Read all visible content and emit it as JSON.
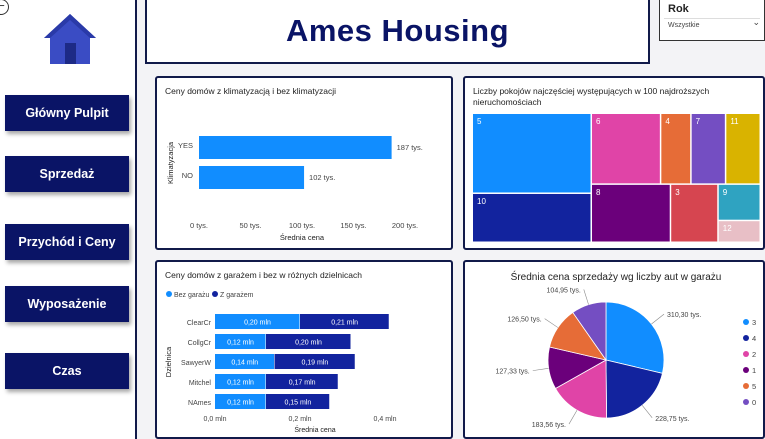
{
  "header": {
    "title": "Ames Housing"
  },
  "slicer": {
    "title": "Rok",
    "value": "Wszystkie"
  },
  "nav": [
    {
      "label": "Główny Pulpit"
    },
    {
      "label": "Sprzedaż"
    },
    {
      "label": "Przychód i Ceny"
    },
    {
      "label": "Wyposażenie"
    },
    {
      "label": "Czas"
    }
  ],
  "icons": {
    "back": "back-circle-icon",
    "logo": "house-icon",
    "dropdown": "chevron-down-icon"
  },
  "colors": {
    "navy": "#0a1466",
    "blue": "#118dff",
    "darkblue": "#12239e"
  },
  "chart_data": [
    {
      "type": "bar",
      "orientation": "horizontal",
      "title": "Ceny domów z klimatyzacją i bez klimatyzacji",
      "ylabel": "Klimatyzacja",
      "xlabel": "Średnia cena",
      "categories": [
        "YES",
        "NO"
      ],
      "values": [
        187,
        102
      ],
      "data_labels": [
        "187 tys.",
        "102 tys."
      ],
      "xticks": [
        "0 tys.",
        "50 tys.",
        "100 tys.",
        "150 tys.",
        "200 tys."
      ],
      "xlim": [
        0,
        200
      ],
      "color": "#118dff"
    },
    {
      "type": "treemap",
      "title": "Liczby pokojów najczęściej występujących w 100 najdroższych nieruchomościach",
      "categories": [
        "5",
        "6",
        "4",
        "7",
        "11",
        "8",
        "10",
        "3",
        "9",
        "12"
      ],
      "values": [
        31,
        16,
        7,
        8,
        8,
        15,
        19,
        9,
        5,
        3
      ],
      "colors": [
        "#118dff",
        "#e044a7",
        "#e66c37",
        "#744ec2",
        "#d9b300",
        "#6b007b",
        "#12239e",
        "#d64550",
        "#2fa3c1",
        "#e8bfc6"
      ]
    },
    {
      "type": "bar",
      "orientation": "horizontal",
      "stacked": true,
      "title": "Ceny domów z garażem i bez w różnych dzielnicach",
      "ylabel": "Dzielnica",
      "xlabel": "Średnia cena",
      "categories": [
        "ClearCr",
        "CollgCr",
        "SawyerW",
        "Mitchel",
        "NAmes"
      ],
      "series": [
        {
          "name": "Bez garażu",
          "values": [
            0.2,
            0.12,
            0.14,
            0.12,
            0.12
          ],
          "labels": [
            "0,20 mln",
            "0,12 mln",
            "0,14 mln",
            "0,12 mln",
            "0,12 mln"
          ],
          "color": "#118dff"
        },
        {
          "name": "Z garażem",
          "values": [
            0.21,
            0.2,
            0.19,
            0.17,
            0.15
          ],
          "labels": [
            "0,21 mln",
            "0,20 mln",
            "0,19 mln",
            "0,17 mln",
            "0,15 mln"
          ],
          "color": "#12239e"
        }
      ],
      "xticks": [
        "0,0 mln",
        "0,2 mln",
        "0,4 mln"
      ],
      "xlim": [
        0,
        0.4
      ]
    },
    {
      "type": "pie",
      "title": "Średnia cena sprzedaży wg liczby aut w garażu",
      "categories": [
        "3",
        "4",
        "2",
        "1",
        "5",
        "0"
      ],
      "values": [
        310.3,
        228.75,
        183.56,
        127.33,
        126.5,
        104.95
      ],
      "labels": [
        "310,30 tys.",
        "228,75 tys.",
        "183,56 tys.",
        "127,33 tys.",
        "126,50 tys.",
        "104,95 tys."
      ],
      "colors": [
        "#118dff",
        "#12239e",
        "#e044a7",
        "#6b007b",
        "#e66c37",
        "#744ec2"
      ],
      "legend": "right"
    }
  ]
}
